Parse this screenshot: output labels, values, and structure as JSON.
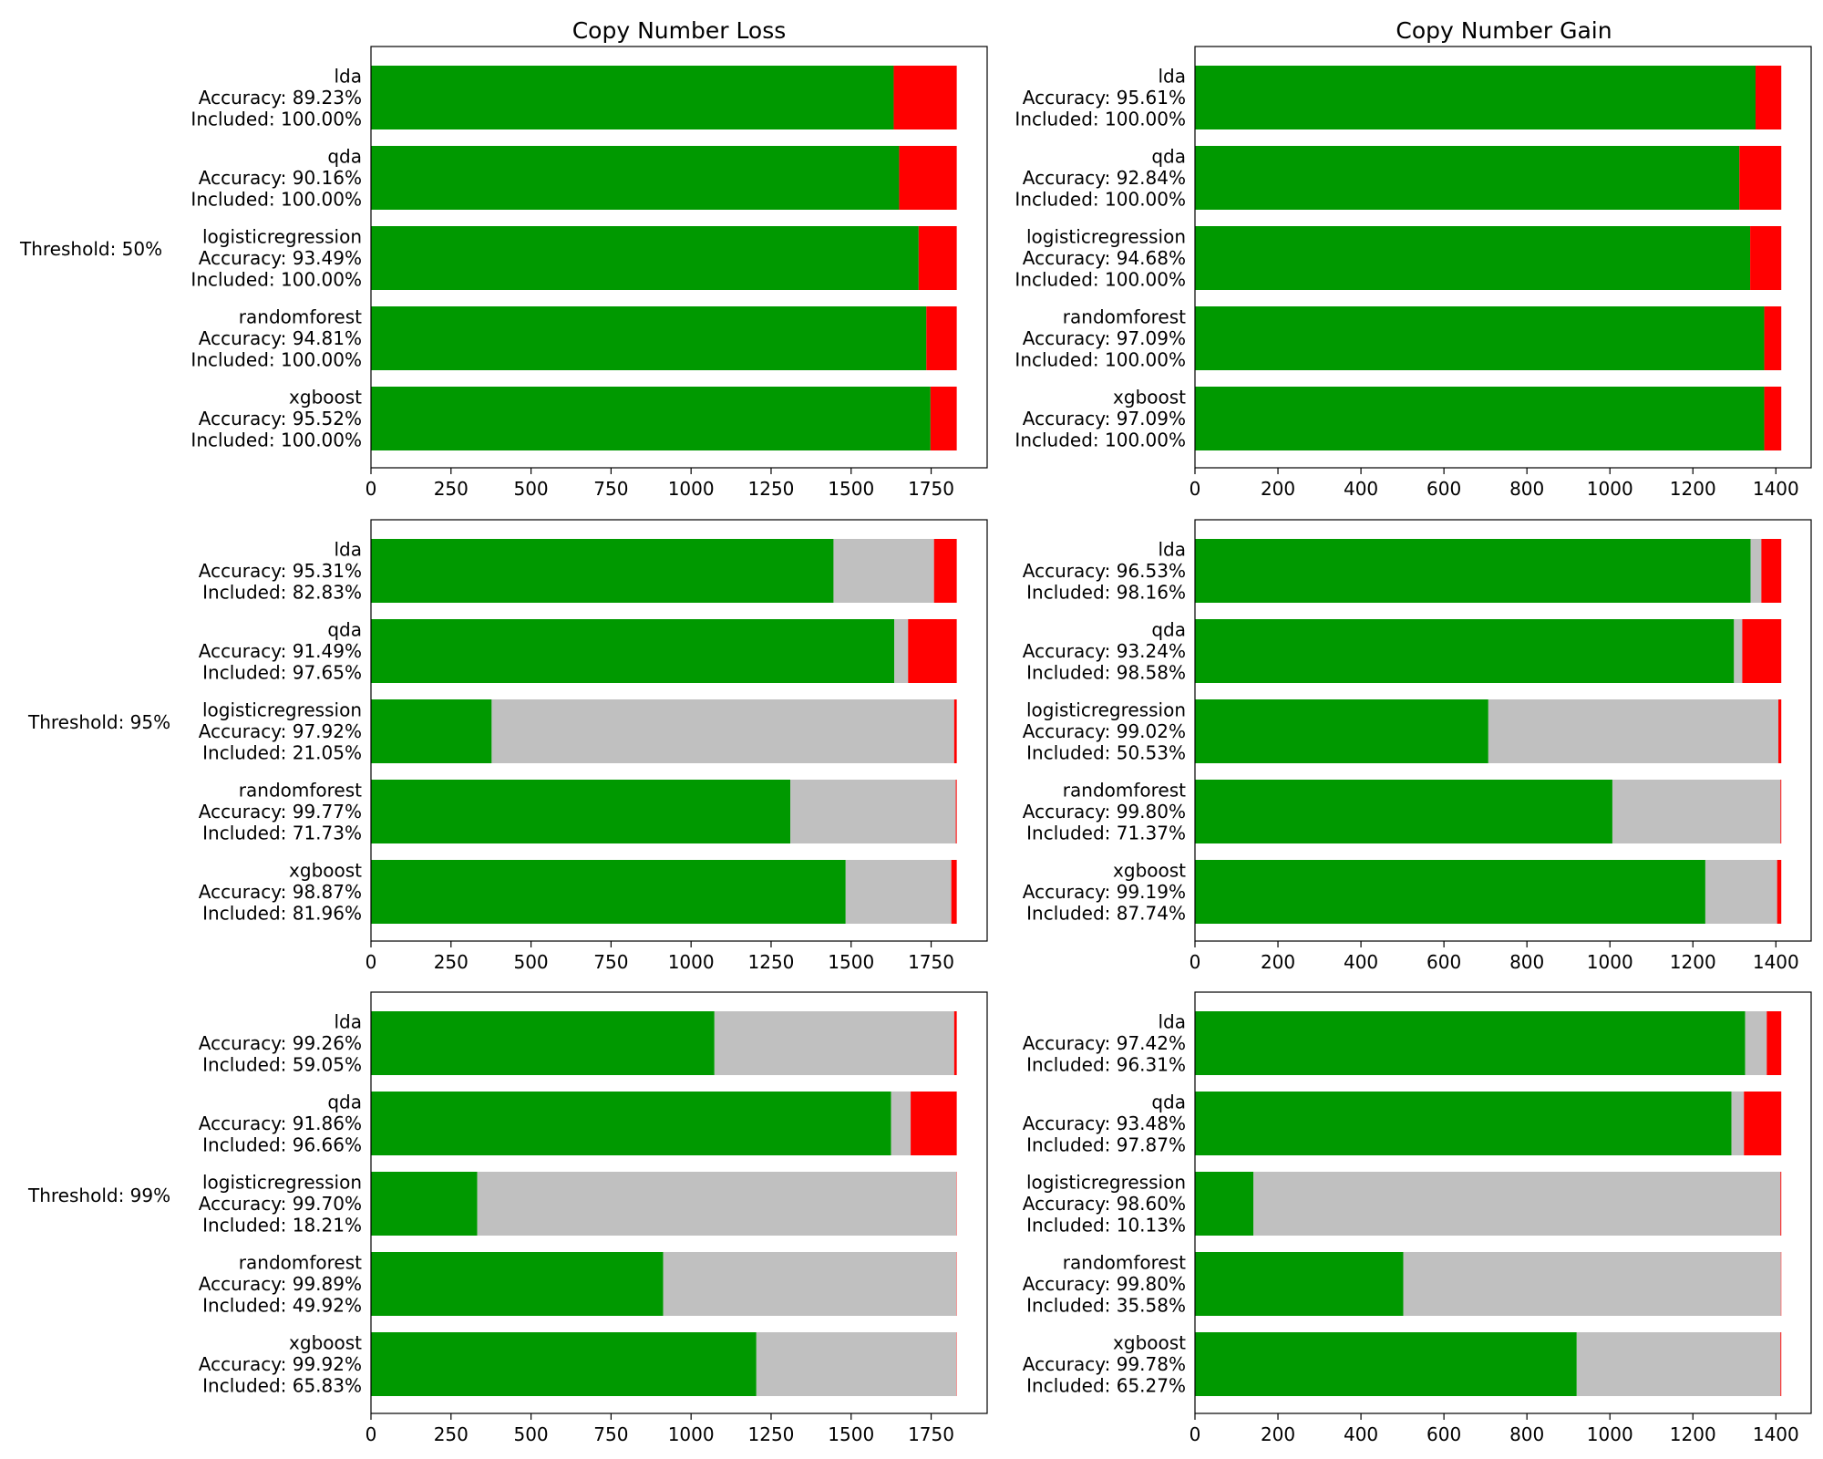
{
  "columns": [
    "Copy Number Loss",
    "Copy Number Gain"
  ],
  "rows": [
    "Threshold: 50%",
    "Threshold: 95%",
    "Threshold: 99%"
  ],
  "colors": {
    "correct": "#009900",
    "excluded": "#c0c0c0",
    "incorrect": "#ff0000"
  },
  "chart_data": [
    {
      "type": "bar",
      "orientation": "horizontal",
      "stacked": true,
      "column": "Copy Number Loss",
      "row": "Threshold: 50%",
      "total": 1830,
      "xlim": [
        0,
        1925
      ],
      "xticks": [
        "0",
        "250",
        "500",
        "750",
        "1000",
        "1250",
        "1500",
        "1750"
      ],
      "categories": [
        "lda",
        "qda",
        "logisticregression",
        "randomforest",
        "xgboost"
      ],
      "accuracy_labels": [
        "Accuracy: 89.23%",
        "Accuracy: 90.16%",
        "Accuracy: 93.49%",
        "Accuracy: 94.81%",
        "Accuracy: 95.52%"
      ],
      "included_labels": [
        "Included: 100.00%",
        "Included: 100.00%",
        "Included: 100.00%",
        "Included: 100.00%",
        "Included: 100.00%"
      ],
      "series": [
        {
          "name": "correct",
          "values": [
            1633,
            1650,
            1711,
            1735,
            1748
          ]
        },
        {
          "name": "excluded",
          "values": [
            0,
            0,
            0,
            0,
            0
          ]
        },
        {
          "name": "incorrect",
          "values": [
            197,
            180,
            119,
            95,
            82
          ]
        }
      ]
    },
    {
      "type": "bar",
      "orientation": "horizontal",
      "stacked": true,
      "column": "Copy Number Gain",
      "row": "Threshold: 50%",
      "total": 1413,
      "xlim": [
        0,
        1485
      ],
      "xticks": [
        "0",
        "200",
        "400",
        "600",
        "800",
        "1000",
        "1200",
        "1400"
      ],
      "categories": [
        "lda",
        "qda",
        "logisticregression",
        "randomforest",
        "xgboost"
      ],
      "accuracy_labels": [
        "Accuracy: 95.61%",
        "Accuracy: 92.84%",
        "Accuracy: 94.68%",
        "Accuracy: 97.09%",
        "Accuracy: 97.09%"
      ],
      "included_labels": [
        "Included: 100.00%",
        "Included: 100.00%",
        "Included: 100.00%",
        "Included: 100.00%",
        "Included: 100.00%"
      ],
      "series": [
        {
          "name": "correct",
          "values": [
            1351,
            1312,
            1338,
            1372,
            1372
          ]
        },
        {
          "name": "excluded",
          "values": [
            0,
            0,
            0,
            0,
            0
          ]
        },
        {
          "name": "incorrect",
          "values": [
            62,
            101,
            75,
            41,
            41
          ]
        }
      ]
    },
    {
      "type": "bar",
      "orientation": "horizontal",
      "stacked": true,
      "column": "Copy Number Loss",
      "row": "Threshold: 95%",
      "total": 1830,
      "xlim": [
        0,
        1925
      ],
      "xticks": [
        "0",
        "250",
        "500",
        "750",
        "1000",
        "1250",
        "1500",
        "1750"
      ],
      "categories": [
        "lda",
        "qda",
        "logisticregression",
        "randomforest",
        "xgboost"
      ],
      "accuracy_labels": [
        "Accuracy: 95.31%",
        "Accuracy: 91.49%",
        "Accuracy: 97.92%",
        "Accuracy: 99.77%",
        "Accuracy: 98.87%"
      ],
      "included_labels": [
        "Included: 82.83%",
        "Included: 97.65%",
        "Included: 21.05%",
        "Included: 71.73%",
        "Included: 81.96%"
      ],
      "series": [
        {
          "name": "correct",
          "values": [
            1445,
            1635,
            377,
            1310,
            1483
          ]
        },
        {
          "name": "excluded",
          "values": [
            314,
            43,
            1445,
            517,
            330
          ]
        },
        {
          "name": "incorrect",
          "values": [
            71,
            152,
            8,
            3,
            17
          ]
        }
      ]
    },
    {
      "type": "bar",
      "orientation": "horizontal",
      "stacked": true,
      "column": "Copy Number Gain",
      "row": "Threshold: 95%",
      "total": 1413,
      "xlim": [
        0,
        1485
      ],
      "xticks": [
        "0",
        "200",
        "400",
        "600",
        "800",
        "1000",
        "1200",
        "1400"
      ],
      "categories": [
        "lda",
        "qda",
        "logisticregression",
        "randomforest",
        "xgboost"
      ],
      "accuracy_labels": [
        "Accuracy: 96.53%",
        "Accuracy: 93.24%",
        "Accuracy: 99.02%",
        "Accuracy: 99.80%",
        "Accuracy: 99.19%"
      ],
      "included_labels": [
        "Included: 98.16%",
        "Included: 98.58%",
        "Included: 50.53%",
        "Included: 71.37%",
        "Included: 87.74%"
      ],
      "series": [
        {
          "name": "correct",
          "values": [
            1339,
            1299,
            707,
            1006,
            1230
          ]
        },
        {
          "name": "excluded",
          "values": [
            26,
            20,
            699,
            405,
            173
          ]
        },
        {
          "name": "incorrect",
          "values": [
            48,
            94,
            7,
            2,
            10
          ]
        }
      ]
    },
    {
      "type": "bar",
      "orientation": "horizontal",
      "stacked": true,
      "column": "Copy Number Loss",
      "row": "Threshold: 99%",
      "total": 1830,
      "xlim": [
        0,
        1925
      ],
      "xticks": [
        "0",
        "250",
        "500",
        "750",
        "1000",
        "1250",
        "1500",
        "1750"
      ],
      "categories": [
        "lda",
        "qda",
        "logisticregression",
        "randomforest",
        "xgboost"
      ],
      "accuracy_labels": [
        "Accuracy: 99.26%",
        "Accuracy: 91.86%",
        "Accuracy: 99.70%",
        "Accuracy: 99.89%",
        "Accuracy: 99.92%"
      ],
      "included_labels": [
        "Included: 59.05%",
        "Included: 96.66%",
        "Included: 18.21%",
        "Included: 49.92%",
        "Included: 65.83%"
      ],
      "series": [
        {
          "name": "correct",
          "values": [
            1073,
            1625,
            332,
            913,
            1204
          ]
        },
        {
          "name": "excluded",
          "values": [
            749,
            61,
            1497,
            916,
            625
          ]
        },
        {
          "name": "incorrect",
          "values": [
            8,
            144,
            1,
            1,
            1
          ]
        }
      ]
    },
    {
      "type": "bar",
      "orientation": "horizontal",
      "stacked": true,
      "column": "Copy Number Gain",
      "row": "Threshold: 99%",
      "total": 1413,
      "xlim": [
        0,
        1485
      ],
      "xticks": [
        "0",
        "200",
        "400",
        "600",
        "800",
        "1000",
        "1200",
        "1400"
      ],
      "categories": [
        "lda",
        "qda",
        "logisticregression",
        "randomforest",
        "xgboost"
      ],
      "accuracy_labels": [
        "Accuracy: 97.42%",
        "Accuracy: 93.48%",
        "Accuracy: 98.60%",
        "Accuracy: 99.80%",
        "Accuracy: 99.78%"
      ],
      "included_labels": [
        "Included: 96.31%",
        "Included: 97.87%",
        "Included: 10.13%",
        "Included: 35.58%",
        "Included: 65.27%"
      ],
      "series": [
        {
          "name": "correct",
          "values": [
            1326,
            1293,
            141,
            502,
            920
          ]
        },
        {
          "name": "excluded",
          "values": [
            52,
            30,
            1270,
            910,
            491
          ]
        },
        {
          "name": "incorrect",
          "values": [
            35,
            90,
            2,
            1,
            2
          ]
        }
      ]
    }
  ]
}
